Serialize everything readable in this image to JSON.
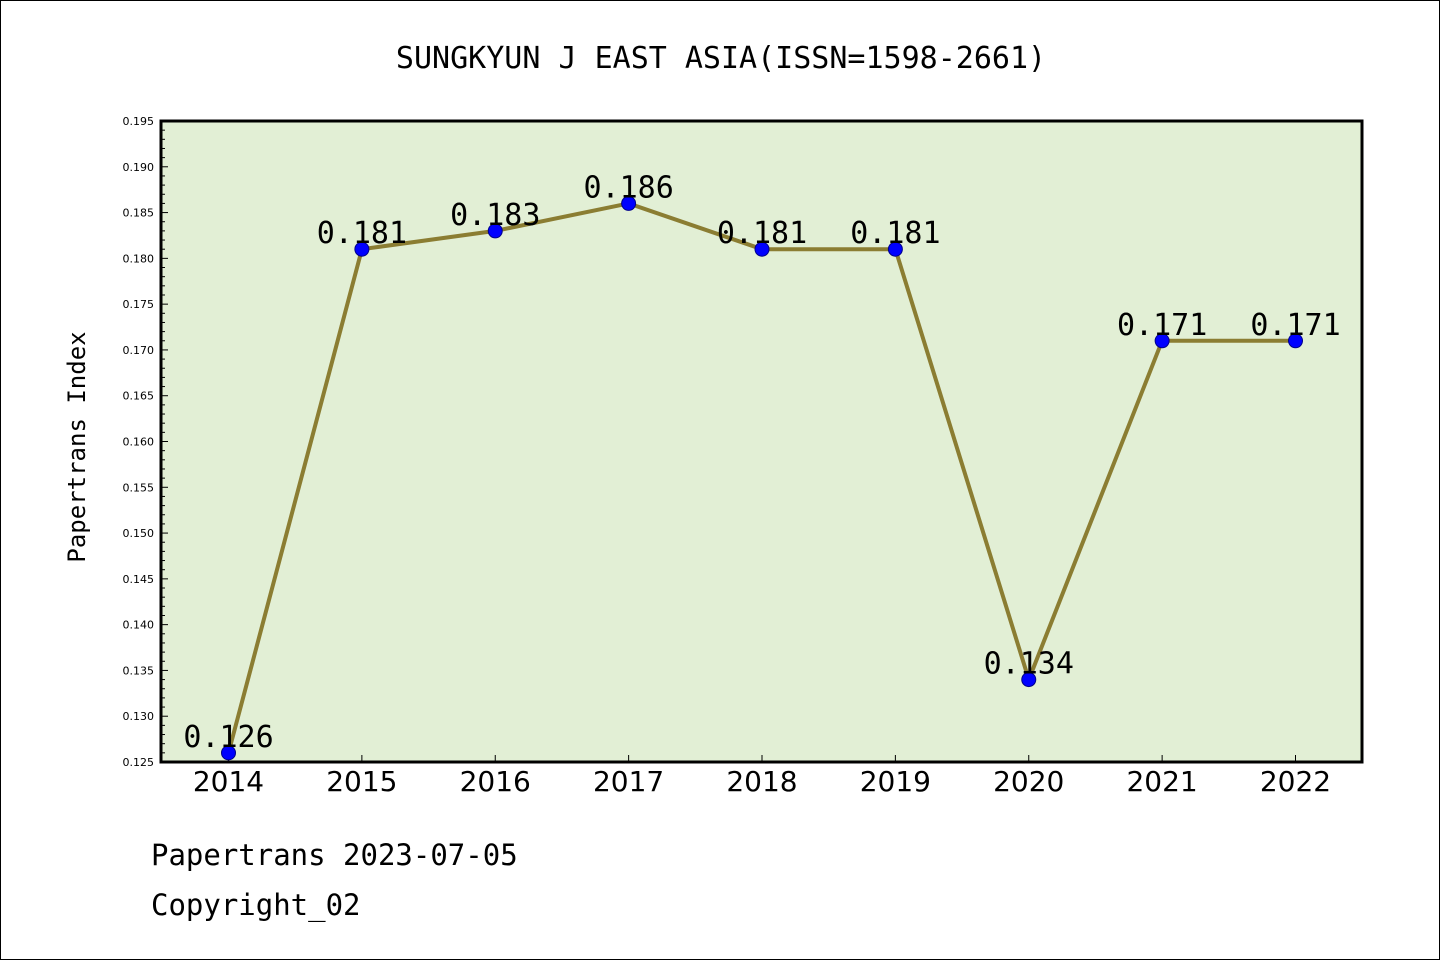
{
  "chart_data": {
    "type": "line",
    "title": "SUNGKYUN J EAST ASIA(ISSN=1598-2661)",
    "xlabel": "",
    "ylabel": "Papertrans Index",
    "categories": [
      "2014",
      "2015",
      "2016",
      "2017",
      "2018",
      "2019",
      "2020",
      "2021",
      "2022"
    ],
    "series": [
      {
        "values": [
          0.126,
          0.181,
          0.183,
          0.186,
          0.181,
          0.181,
          0.134,
          0.171,
          0.171
        ],
        "data_labels": [
          "0.126",
          "0.181",
          "0.183",
          "0.186",
          "0.181",
          "0.181",
          "0.134",
          "0.171",
          "0.171"
        ]
      }
    ],
    "ylim": [
      0.125,
      0.195
    ],
    "yticks": [
      "0.125",
      "0.130",
      "0.135",
      "0.140",
      "0.145",
      "0.150",
      "0.155",
      "0.160",
      "0.165",
      "0.170",
      "0.175",
      "0.180",
      "0.185",
      "0.190",
      "0.195"
    ],
    "grid": false,
    "legend": "none",
    "colors": {
      "plot_background": "#e2efd5",
      "line": "#8b7d32",
      "marker_fill": "#0000ff",
      "marker_edge": "#00008b"
    }
  },
  "footer": {
    "line1": "Papertrans 2023-07-05",
    "line2": "Copyright_02"
  }
}
